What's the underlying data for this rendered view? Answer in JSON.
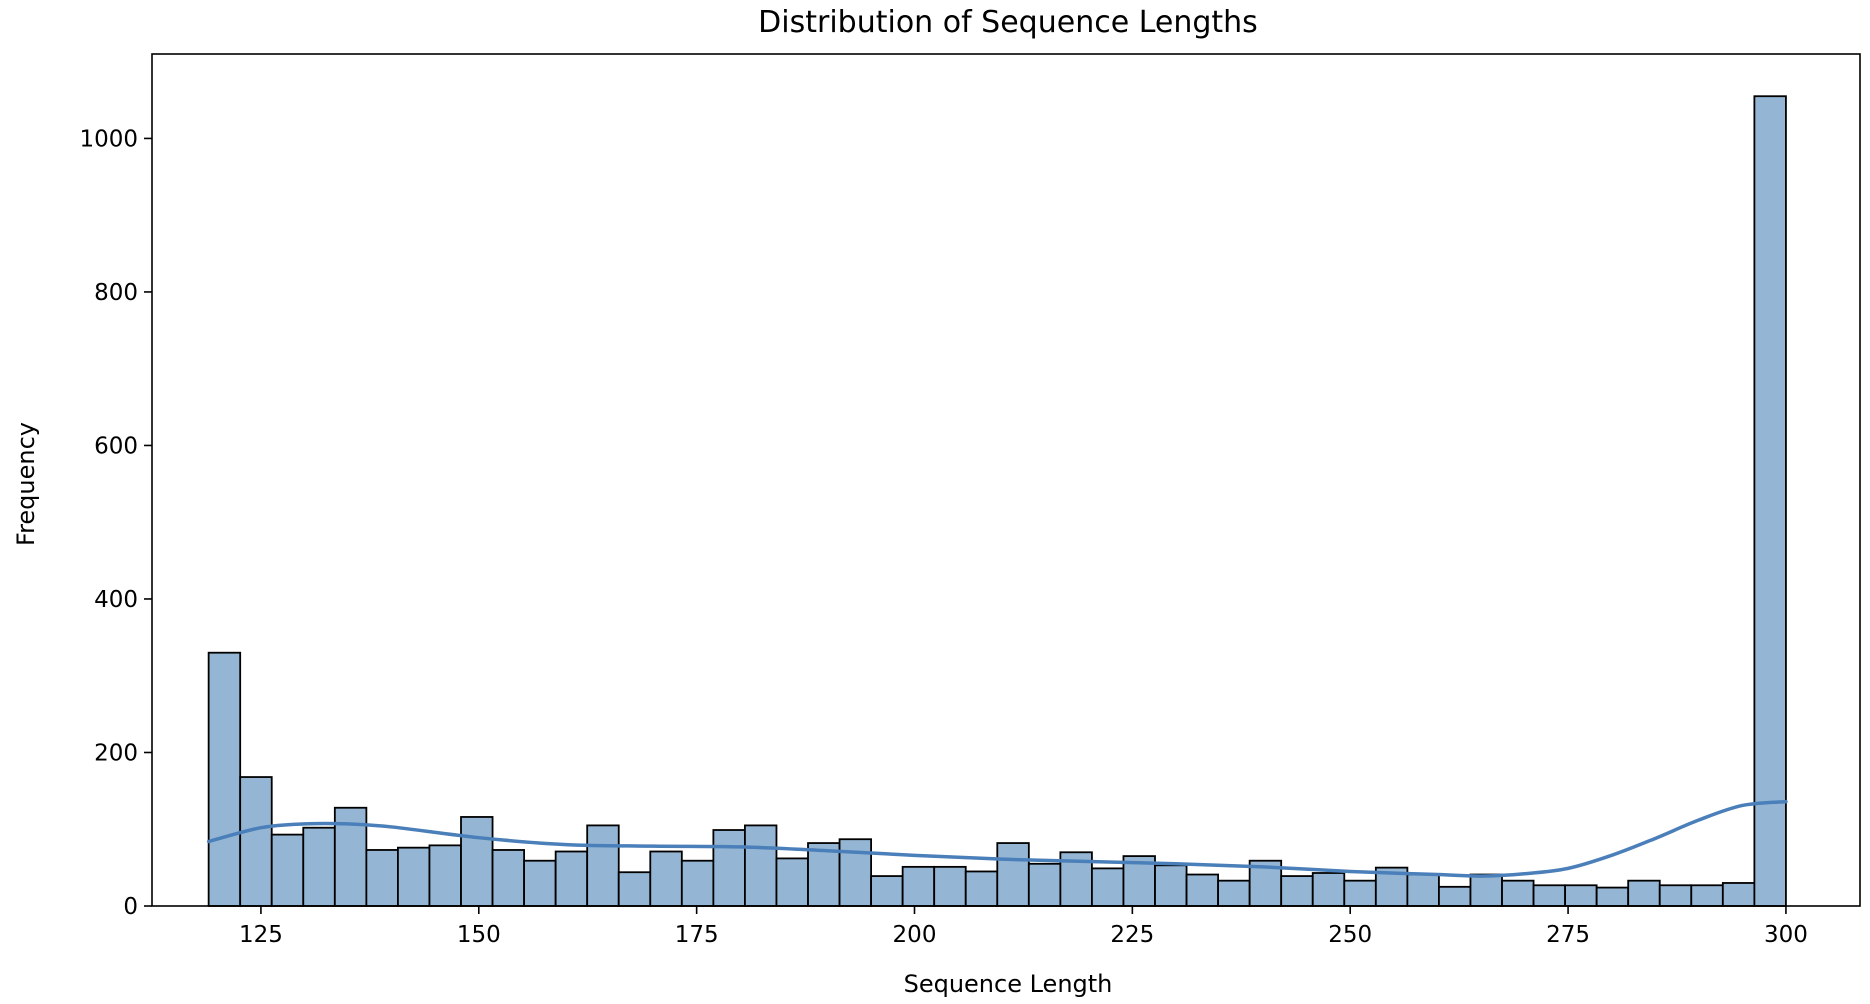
{
  "chart_data": {
    "type": "bar",
    "title": "Distribution of Sequence Lengths",
    "xlabel": "Sequence Length",
    "ylabel": "Frequency",
    "xlim": [
      112.5,
      308.5
    ],
    "ylim": [
      0,
      1110
    ],
    "xticks": [
      125,
      150,
      175,
      200,
      225,
      250,
      275,
      300
    ],
    "yticks": [
      0,
      200,
      400,
      600,
      800,
      1000
    ],
    "grid": false,
    "bar_color": "#94b6d4",
    "bar_edge_color": "#000000",
    "kde_color": "#4a7fba",
    "bin_start": 119,
    "bin_width": 3.62,
    "values": [
      330,
      168,
      93,
      102,
      128,
      73,
      76,
      79,
      116,
      73,
      59,
      71,
      105,
      44,
      71,
      59,
      99,
      105,
      62,
      82,
      87,
      39,
      51,
      51,
      45,
      82,
      55,
      70,
      49,
      65,
      53,
      41,
      33,
      59,
      39,
      43,
      33,
      50,
      41,
      25,
      41,
      33,
      27,
      27,
      24,
      33,
      27,
      27,
      30,
      1055
    ],
    "kde": {
      "x": [
        119,
        125,
        130,
        135,
        140,
        150,
        160,
        170,
        180,
        190,
        200,
        210,
        220,
        230,
        240,
        250,
        260,
        265,
        270,
        275,
        280,
        285,
        290,
        295,
        300
      ],
      "y": [
        84,
        102,
        107,
        107,
        103,
        89,
        80,
        78,
        77,
        72,
        66,
        61,
        58,
        55,
        51,
        45,
        41,
        39,
        42,
        49,
        66,
        88,
        112,
        131,
        136
      ]
    }
  }
}
